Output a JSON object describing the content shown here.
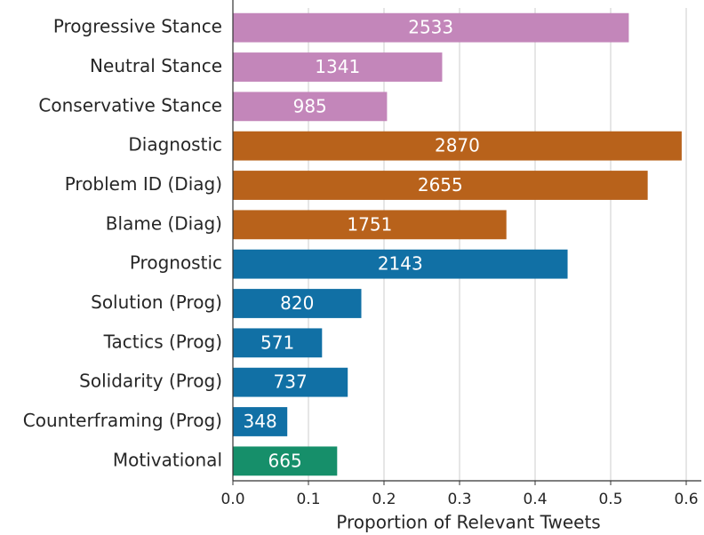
{
  "chart_data": {
    "type": "barh",
    "xlabel": "Proportion of Relevant Tweets",
    "categories": [
      "Progressive Stance",
      "Neutral Stance",
      "Conservative Stance",
      "Diagnostic",
      "Problem ID (Diag)",
      "Blame (Diag)",
      "Prognostic",
      "Solution (Prog)",
      "Tactics (Prog)",
      "Solidarity (Prog)",
      "Counterframing (Prog)",
      "Motivational"
    ],
    "values": [
      0.524,
      0.277,
      0.204,
      0.594,
      0.549,
      0.362,
      0.443,
      0.17,
      0.118,
      0.152,
      0.072,
      0.138
    ],
    "counts": [
      2533,
      1341,
      985,
      2870,
      2655,
      1751,
      2143,
      820,
      571,
      737,
      348,
      665
    ],
    "colors": [
      "#c386ba",
      "#c386ba",
      "#c386ba",
      "#b8621b",
      "#b8621b",
      "#b8621b",
      "#1170a5",
      "#1170a5",
      "#1170a5",
      "#1170a5",
      "#1170a5",
      "#168f6a"
    ],
    "xlim": [
      0,
      0.62
    ],
    "xticks": [
      {
        "value": 0,
        "label": "0.0"
      },
      0.1,
      0.2,
      0.3,
      0.4,
      0.5,
      0.6
    ],
    "grid": true
  }
}
